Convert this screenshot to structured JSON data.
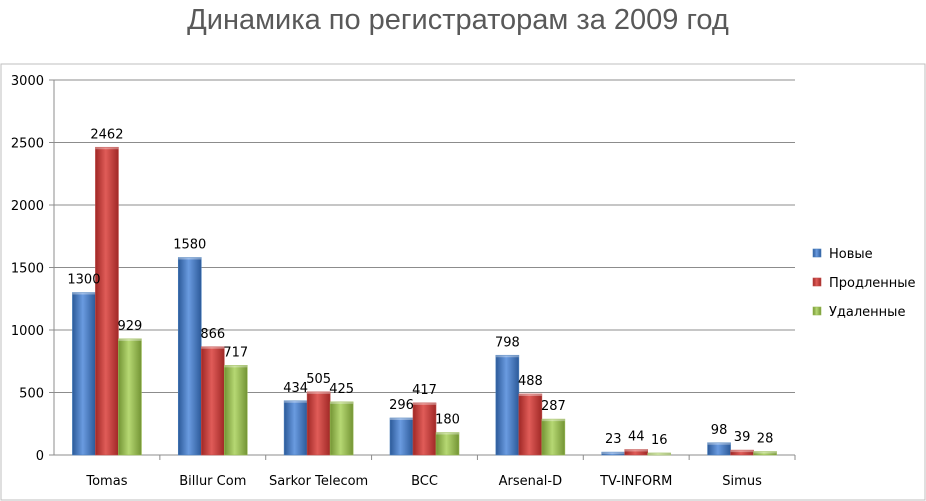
{
  "chart_data": {
    "type": "bar",
    "title": "Динамика по регистраторам за 2009 год",
    "xlabel": "",
    "ylabel": "",
    "ylim": [
      0,
      3000
    ],
    "yticks": [
      0,
      500,
      1000,
      1500,
      2000,
      2500,
      3000
    ],
    "grid": true,
    "legend_position": "right",
    "categories": [
      "Tomas",
      "Billur Com",
      "Sarkor Telecom",
      "BCC",
      "Arsenal-D",
      "TV-INFORM",
      "Simus"
    ],
    "series": [
      {
        "name": "Новые",
        "color": "#4a7ebb",
        "values": [
          1300,
          1580,
          434,
          296,
          798,
          23,
          98
        ]
      },
      {
        "name": "Продленные",
        "color": "#be4b48",
        "values": [
          2462,
          866,
          505,
          417,
          488,
          44,
          39
        ]
      },
      {
        "name": "Удаленные",
        "color": "#98b954",
        "values": [
          929,
          717,
          425,
          180,
          287,
          16,
          28
        ]
      }
    ]
  }
}
